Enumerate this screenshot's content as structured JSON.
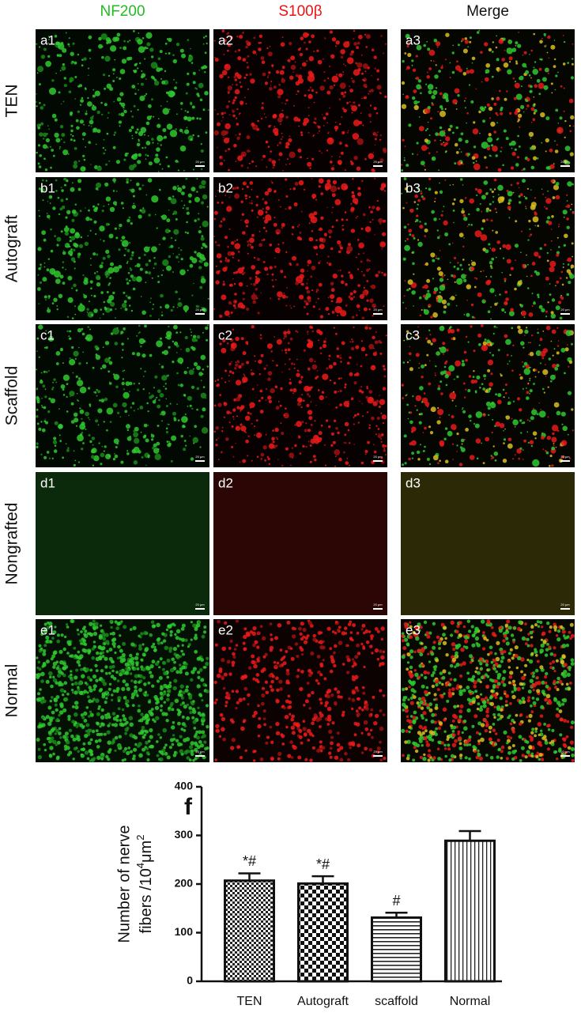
{
  "columns": [
    {
      "label": "NF200",
      "color": "#22bb22"
    },
    {
      "label": "S100β",
      "color": "#ee1111"
    },
    {
      "label": "Merge",
      "color": "#111111"
    }
  ],
  "rows": [
    {
      "label": "TEN",
      "panels": [
        "a1",
        "a2",
        "a3"
      ]
    },
    {
      "label": "Autograft",
      "panels": [
        "b1",
        "b2",
        "b3"
      ]
    },
    {
      "label": "Scaffold",
      "panels": [
        "c1",
        "c2",
        "c3"
      ]
    },
    {
      "label": "Nongrafted",
      "panels": [
        "d1",
        "d2",
        "d3"
      ]
    },
    {
      "label": "Normal",
      "panels": [
        "e1",
        "e2",
        "e3"
      ]
    }
  ],
  "scale_bar": "20 μm",
  "chart_data": {
    "type": "bar",
    "panel_label": "f",
    "y_label": [
      "Number of nerve",
      "fibers /10",
      "4",
      "μm",
      "2"
    ],
    "categories": [
      "TEN",
      "Autograft",
      "scaffold",
      "Normal"
    ],
    "values": [
      207,
      201,
      131,
      289
    ],
    "errors": [
      15,
      15,
      10,
      20
    ],
    "annotations": [
      "*#",
      "*#",
      "#",
      null
    ],
    "ylim": [
      0,
      400
    ],
    "yticks": [
      0,
      100,
      200,
      300,
      400
    ],
    "color": "#111111"
  }
}
